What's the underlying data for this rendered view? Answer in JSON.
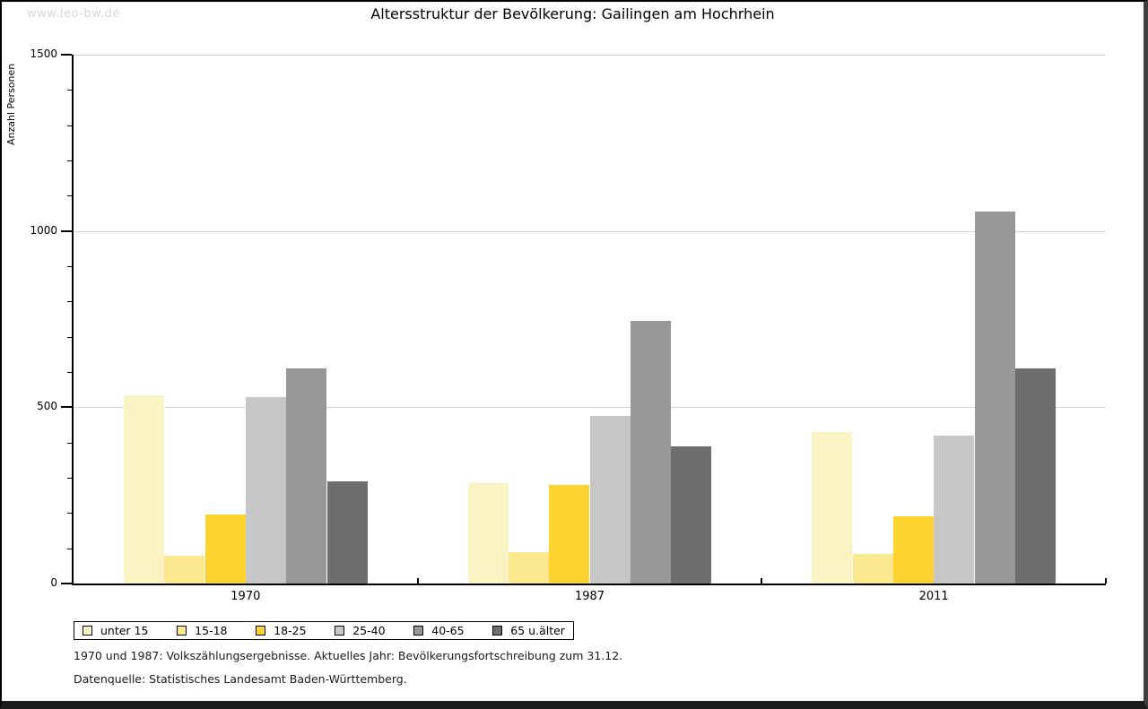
{
  "window": {
    "watermark": "www.leo-bw.de"
  },
  "title": "Altersstruktur der Bevölkerung: Gailingen am Hochrhein",
  "chart_data": {
    "type": "bar",
    "title": "Altersstruktur der Bevölkerung: Gailingen am Hochrhein",
    "xlabel": "",
    "ylabel": "Anzahl Personen",
    "ylim": [
      0,
      1500
    ],
    "y_ticks": [
      0,
      500,
      1000,
      1500
    ],
    "y_minor_step": 100,
    "grid": "horizontal-major",
    "legend_position": "bottom-left",
    "categories": [
      "1970",
      "1987",
      "2011"
    ],
    "series": [
      {
        "name": "unter 15",
        "color": "#faf3c4",
        "values": [
          535,
          285,
          430
        ]
      },
      {
        "name": "15-18",
        "color": "#fce88f",
        "values": [
          80,
          90,
          85
        ]
      },
      {
        "name": "18-25",
        "color": "#fdd32f",
        "values": [
          195,
          280,
          190
        ]
      },
      {
        "name": "25-40",
        "color": "#c7c7c7",
        "values": [
          530,
          475,
          420
        ]
      },
      {
        "name": "40-65",
        "color": "#989898",
        "values": [
          610,
          745,
          1055
        ]
      },
      {
        "name": "65 u.älter",
        "color": "#6e6e6e",
        "values": [
          290,
          390,
          610
        ]
      }
    ]
  },
  "footnotes": {
    "line1": "1970 und 1987: Volkszählungsergebnisse. Aktuelles Jahr: Bevölkerungsfortschreibung zum 31.12.",
    "line2": "Datenquelle: Statistisches Landesamt Baden-Württemberg."
  }
}
